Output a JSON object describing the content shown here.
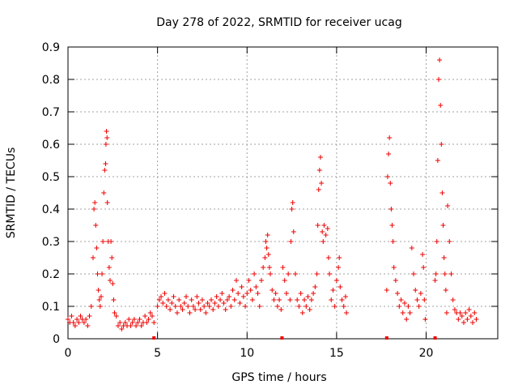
{
  "chart_data": {
    "type": "scatter",
    "title": "Day 278 of 2022, SRMTID for receiver ucag",
    "xlabel": "GPS time / hours",
    "ylabel": "SRMTID / TECUs",
    "xlim": [
      0,
      24
    ],
    "ylim": [
      0,
      0.9
    ],
    "x_ticks": [
      0,
      5,
      10,
      15,
      20
    ],
    "y_ticks": [
      0,
      0.1,
      0.2,
      0.3,
      0.4,
      0.5,
      0.6,
      0.7,
      0.8,
      0.9
    ],
    "x_tick_labels": [
      "0",
      "5",
      "10",
      "15",
      "20"
    ],
    "y_tick_labels": [
      "0",
      "0.1",
      "0.2",
      "0.3",
      "0.4",
      "0.5",
      "0.6",
      "0.7",
      "0.8",
      "0.9"
    ],
    "grid": true,
    "marker": "plus",
    "color": "#ee0000",
    "series": [
      {
        "name": "SRMTID",
        "points": [
          [
            0.0,
            0.06
          ],
          [
            0.1,
            0.05
          ],
          [
            0.2,
            0.07
          ],
          [
            0.3,
            0.05
          ],
          [
            0.4,
            0.04
          ],
          [
            0.5,
            0.06
          ],
          [
            0.6,
            0.05
          ],
          [
            0.7,
            0.07
          ],
          [
            0.8,
            0.06
          ],
          [
            0.9,
            0.05
          ],
          [
            1.0,
            0.06
          ],
          [
            1.1,
            0.04
          ],
          [
            1.2,
            0.07
          ],
          [
            1.3,
            0.1
          ],
          [
            1.4,
            0.25
          ],
          [
            1.45,
            0.4
          ],
          [
            1.5,
            0.42
          ],
          [
            1.55,
            0.35
          ],
          [
            1.6,
            0.28
          ],
          [
            1.65,
            0.2
          ],
          [
            1.7,
            0.15
          ],
          [
            1.75,
            0.12
          ],
          [
            1.8,
            0.1
          ],
          [
            1.85,
            0.13
          ],
          [
            1.9,
            0.2
          ],
          [
            1.95,
            0.3
          ],
          [
            2.0,
            0.45
          ],
          [
            2.05,
            0.52
          ],
          [
            2.1,
            0.54
          ],
          [
            2.12,
            0.6
          ],
          [
            2.15,
            0.64
          ],
          [
            2.18,
            0.62
          ],
          [
            2.2,
            0.42
          ],
          [
            2.25,
            0.3
          ],
          [
            2.3,
            0.22
          ],
          [
            2.35,
            0.18
          ],
          [
            2.4,
            0.3
          ],
          [
            2.45,
            0.25
          ],
          [
            2.5,
            0.17
          ],
          [
            2.55,
            0.12
          ],
          [
            2.6,
            0.08
          ],
          [
            2.7,
            0.07
          ],
          [
            2.8,
            0.04
          ],
          [
            2.9,
            0.05
          ],
          [
            3.0,
            0.03
          ],
          [
            3.1,
            0.04
          ],
          [
            3.2,
            0.05
          ],
          [
            3.3,
            0.04
          ],
          [
            3.4,
            0.06
          ],
          [
            3.5,
            0.04
          ],
          [
            3.6,
            0.05
          ],
          [
            3.7,
            0.06
          ],
          [
            3.8,
            0.04
          ],
          [
            3.9,
            0.05
          ],
          [
            4.0,
            0.06
          ],
          [
            4.1,
            0.04
          ],
          [
            4.2,
            0.05
          ],
          [
            4.3,
            0.07
          ],
          [
            4.4,
            0.05
          ],
          [
            4.5,
            0.06
          ],
          [
            4.6,
            0.08
          ],
          [
            4.7,
            0.07
          ],
          [
            4.8,
            0.05
          ],
          [
            5.0,
            0.1
          ],
          [
            5.1,
            0.12
          ],
          [
            5.2,
            0.13
          ],
          [
            5.3,
            0.11
          ],
          [
            5.4,
            0.14
          ],
          [
            5.5,
            0.1
          ],
          [
            5.6,
            0.12
          ],
          [
            5.7,
            0.09
          ],
          [
            5.8,
            0.11
          ],
          [
            5.9,
            0.13
          ],
          [
            6.0,
            0.1
          ],
          [
            6.1,
            0.08
          ],
          [
            6.2,
            0.12
          ],
          [
            6.3,
            0.1
          ],
          [
            6.4,
            0.09
          ],
          [
            6.5,
            0.11
          ],
          [
            6.6,
            0.13
          ],
          [
            6.7,
            0.1
          ],
          [
            6.8,
            0.08
          ],
          [
            6.9,
            0.12
          ],
          [
            7.0,
            0.1
          ],
          [
            7.1,
            0.09
          ],
          [
            7.2,
            0.13
          ],
          [
            7.3,
            0.11
          ],
          [
            7.4,
            0.09
          ],
          [
            7.5,
            0.12
          ],
          [
            7.6,
            0.1
          ],
          [
            7.7,
            0.08
          ],
          [
            7.8,
            0.11
          ],
          [
            7.9,
            0.1
          ],
          [
            8.0,
            0.12
          ],
          [
            8.1,
            0.09
          ],
          [
            8.2,
            0.11
          ],
          [
            8.3,
            0.13
          ],
          [
            8.4,
            0.1
          ],
          [
            8.5,
            0.12
          ],
          [
            8.6,
            0.14
          ],
          [
            8.7,
            0.11
          ],
          [
            8.8,
            0.09
          ],
          [
            8.9,
            0.12
          ],
          [
            9.0,
            0.13
          ],
          [
            9.1,
            0.1
          ],
          [
            9.2,
            0.15
          ],
          [
            9.3,
            0.12
          ],
          [
            9.4,
            0.18
          ],
          [
            9.5,
            0.14
          ],
          [
            9.6,
            0.11
          ],
          [
            9.7,
            0.16
          ],
          [
            9.8,
            0.13
          ],
          [
            9.9,
            0.1
          ],
          [
            10.0,
            0.14
          ],
          [
            10.1,
            0.18
          ],
          [
            10.2,
            0.15
          ],
          [
            10.3,
            0.12
          ],
          [
            10.4,
            0.2
          ],
          [
            10.5,
            0.16
          ],
          [
            10.6,
            0.14
          ],
          [
            10.7,
            0.1
          ],
          [
            10.8,
            0.18
          ],
          [
            10.9,
            0.22
          ],
          [
            11.0,
            0.25
          ],
          [
            11.05,
            0.3
          ],
          [
            11.1,
            0.28
          ],
          [
            11.15,
            0.32
          ],
          [
            11.2,
            0.26
          ],
          [
            11.25,
            0.22
          ],
          [
            11.3,
            0.2
          ],
          [
            11.4,
            0.15
          ],
          [
            11.5,
            0.12
          ],
          [
            11.6,
            0.14
          ],
          [
            11.7,
            0.1
          ],
          [
            11.8,
            0.12
          ],
          [
            11.9,
            0.09
          ],
          [
            12.0,
            0.22
          ],
          [
            12.1,
            0.18
          ],
          [
            12.2,
            0.14
          ],
          [
            12.3,
            0.2
          ],
          [
            12.4,
            0.12
          ],
          [
            12.45,
            0.3
          ],
          [
            12.5,
            0.4
          ],
          [
            12.55,
            0.42
          ],
          [
            12.6,
            0.33
          ],
          [
            12.7,
            0.2
          ],
          [
            12.8,
            0.12
          ],
          [
            12.9,
            0.1
          ],
          [
            13.0,
            0.14
          ],
          [
            13.1,
            0.08
          ],
          [
            13.2,
            0.12
          ],
          [
            13.3,
            0.1
          ],
          [
            13.4,
            0.13
          ],
          [
            13.5,
            0.09
          ],
          [
            13.6,
            0.12
          ],
          [
            13.7,
            0.14
          ],
          [
            13.8,
            0.16
          ],
          [
            13.9,
            0.2
          ],
          [
            13.95,
            0.35
          ],
          [
            14.0,
            0.46
          ],
          [
            14.05,
            0.52
          ],
          [
            14.1,
            0.56
          ],
          [
            14.15,
            0.48
          ],
          [
            14.2,
            0.33
          ],
          [
            14.25,
            0.3
          ],
          [
            14.3,
            0.35
          ],
          [
            14.4,
            0.32
          ],
          [
            14.5,
            0.34
          ],
          [
            14.55,
            0.25
          ],
          [
            14.6,
            0.2
          ],
          [
            14.7,
            0.12
          ],
          [
            14.8,
            0.15
          ],
          [
            14.9,
            0.1
          ],
          [
            15.0,
            0.18
          ],
          [
            15.1,
            0.22
          ],
          [
            15.15,
            0.25
          ],
          [
            15.2,
            0.16
          ],
          [
            15.3,
            0.12
          ],
          [
            15.4,
            0.1
          ],
          [
            15.5,
            0.13
          ],
          [
            15.55,
            0.08
          ],
          [
            17.8,
            0.15
          ],
          [
            17.85,
            0.5
          ],
          [
            17.9,
            0.57
          ],
          [
            17.95,
            0.62
          ],
          [
            18.0,
            0.48
          ],
          [
            18.05,
            0.4
          ],
          [
            18.1,
            0.35
          ],
          [
            18.15,
            0.3
          ],
          [
            18.2,
            0.22
          ],
          [
            18.3,
            0.18
          ],
          [
            18.4,
            0.14
          ],
          [
            18.5,
            0.1
          ],
          [
            18.6,
            0.12
          ],
          [
            18.7,
            0.08
          ],
          [
            18.8,
            0.11
          ],
          [
            18.9,
            0.06
          ],
          [
            19.0,
            0.1
          ],
          [
            19.1,
            0.08
          ],
          [
            19.2,
            0.28
          ],
          [
            19.3,
            0.2
          ],
          [
            19.4,
            0.15
          ],
          [
            19.5,
            0.12
          ],
          [
            19.6,
            0.1
          ],
          [
            19.7,
            0.14
          ],
          [
            19.8,
            0.26
          ],
          [
            19.85,
            0.22
          ],
          [
            19.9,
            0.12
          ],
          [
            19.95,
            0.06
          ],
          [
            20.5,
            0.18
          ],
          [
            20.55,
            0.2
          ],
          [
            20.6,
            0.3
          ],
          [
            20.65,
            0.55
          ],
          [
            20.7,
            0.8
          ],
          [
            20.75,
            0.86
          ],
          [
            20.8,
            0.72
          ],
          [
            20.85,
            0.6
          ],
          [
            20.9,
            0.45
          ],
          [
            20.95,
            0.35
          ],
          [
            21.0,
            0.25
          ],
          [
            21.05,
            0.2
          ],
          [
            21.1,
            0.15
          ],
          [
            21.15,
            0.08
          ],
          [
            21.2,
            0.41
          ],
          [
            21.3,
            0.3
          ],
          [
            21.4,
            0.2
          ],
          [
            21.5,
            0.12
          ],
          [
            21.6,
            0.09
          ],
          [
            21.7,
            0.08
          ],
          [
            21.8,
            0.06
          ],
          [
            21.9,
            0.08
          ],
          [
            22.0,
            0.07
          ],
          [
            22.1,
            0.05
          ],
          [
            22.2,
            0.08
          ],
          [
            22.3,
            0.06
          ],
          [
            22.4,
            0.09
          ],
          [
            22.5,
            0.07
          ],
          [
            22.6,
            0.05
          ],
          [
            22.7,
            0.08
          ],
          [
            22.8,
            0.06
          ]
        ]
      }
    ],
    "baseline_markers": [
      4.8,
      11.95,
      17.8,
      20.5
    ]
  }
}
